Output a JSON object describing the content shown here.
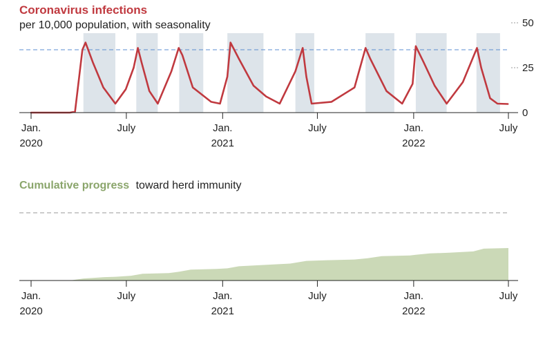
{
  "colors": {
    "infection_line": "#c0393f",
    "season_band": "#dde4ea",
    "threshold_line": "#5b8ed0",
    "progress_fill": "#cbd9b7",
    "progress_title": "#8aa56b",
    "axis": "#222222",
    "dashed_gray": "#999999"
  },
  "chart_data": [
    {
      "type": "line",
      "title": "Coronavirus infections",
      "subtitle": "per 10,000 population, with seasonality",
      "x_range": [
        "2020-01-01",
        "2022-07-01"
      ],
      "ylim": [
        0,
        50
      ],
      "y_ticks": [
        {
          "value": 50,
          "label": "50"
        },
        {
          "value": 25,
          "label": "25"
        },
        {
          "value": 0,
          "label": "0"
        }
      ],
      "threshold": 35,
      "x_ticks": [
        {
          "date": "2020-01-01",
          "label": "Jan.",
          "year": "2020"
        },
        {
          "date": "2020-07-01",
          "label": "July",
          "year": ""
        },
        {
          "date": "2021-01-01",
          "label": "Jan.",
          "year": "2021"
        },
        {
          "date": "2021-07-01",
          "label": "July",
          "year": ""
        },
        {
          "date": "2022-01-01",
          "label": "Jan.",
          "year": "2022"
        },
        {
          "date": "2022-07-01",
          "label": "July",
          "year": ""
        }
      ],
      "season_bands": [
        [
          "2020-04-10",
          "2020-06-10"
        ],
        [
          "2020-07-20",
          "2020-08-30"
        ],
        [
          "2020-10-10",
          "2020-11-25"
        ],
        [
          "2021-01-10",
          "2021-03-20"
        ],
        [
          "2021-05-20",
          "2021-06-25"
        ],
        [
          "2021-10-01",
          "2021-11-25"
        ],
        [
          "2022-01-05",
          "2022-03-05"
        ],
        [
          "2022-05-01",
          "2022-06-15"
        ]
      ],
      "series": [
        {
          "x": [
            "2020-01-01",
            "2020-03-15",
            "2020-03-25",
            "2020-04-08",
            "2020-04-14",
            "2020-04-28",
            "2020-05-18",
            "2020-06-10",
            "2020-06-30",
            "2020-07-15",
            "2020-07-23",
            "2020-07-30",
            "2020-08-14",
            "2020-08-30",
            "2020-09-25",
            "2020-10-09",
            "2020-10-16",
            "2020-11-05",
            "2020-12-10",
            "2020-12-27",
            "2021-01-10",
            "2021-01-16",
            "2021-02-01",
            "2021-03-01",
            "2021-03-25",
            "2021-04-20",
            "2021-05-20",
            "2021-06-03",
            "2021-06-10",
            "2021-06-20",
            "2021-07-28",
            "2021-09-10",
            "2021-10-01",
            "2021-10-10",
            "2021-11-10",
            "2021-12-10",
            "2021-12-30",
            "2022-01-05",
            "2022-01-20",
            "2022-02-10",
            "2022-03-05",
            "2022-04-05",
            "2022-05-02",
            "2022-05-10",
            "2022-05-27",
            "2022-06-10",
            "2022-06-30"
          ],
          "y": [
            0,
            0,
            0.5,
            35,
            39,
            28,
            14,
            5,
            13,
            25,
            36,
            28,
            12,
            5,
            23,
            36,
            32,
            14,
            6,
            5,
            20,
            39,
            30,
            15,
            9,
            5,
            23,
            36,
            20,
            5,
            6,
            14,
            36,
            30,
            12,
            5,
            16,
            37,
            28,
            15,
            5,
            17,
            36,
            25,
            8,
            5,
            4.8
          ]
        }
      ]
    },
    {
      "type": "area",
      "title": "Cumulative progress",
      "subtitle": "toward herd immunity",
      "x_range": [
        "2020-01-01",
        "2022-07-01"
      ],
      "ylim": [
        0,
        100
      ],
      "threshold": 100,
      "x_ticks": [
        {
          "date": "2020-01-01",
          "label": "Jan.",
          "year": "2020"
        },
        {
          "date": "2020-07-01",
          "label": "July",
          "year": ""
        },
        {
          "date": "2021-01-01",
          "label": "Jan.",
          "year": "2021"
        },
        {
          "date": "2021-07-01",
          "label": "July",
          "year": ""
        },
        {
          "date": "2022-01-01",
          "label": "Jan.",
          "year": "2022"
        },
        {
          "date": "2022-07-01",
          "label": "July",
          "year": ""
        }
      ],
      "series": [
        {
          "x": [
            "2020-01-01",
            "2020-03-15",
            "2020-04-10",
            "2020-05-20",
            "2020-06-10",
            "2020-07-10",
            "2020-08-01",
            "2020-09-20",
            "2020-10-10",
            "2020-11-01",
            "2020-12-20",
            "2021-01-10",
            "2021-02-01",
            "2021-03-20",
            "2021-05-10",
            "2021-06-10",
            "2021-07-20",
            "2021-09-10",
            "2021-10-05",
            "2021-11-01",
            "2021-12-25",
            "2022-01-05",
            "2022-02-01",
            "2022-03-10",
            "2022-04-25",
            "2022-05-15",
            "2022-07-01"
          ],
          "y": [
            0,
            0,
            3,
            5,
            5.5,
            7,
            10,
            11,
            13,
            16,
            17,
            18,
            21,
            23,
            25,
            29,
            30,
            31,
            33,
            36,
            37,
            38,
            40,
            41,
            43,
            47,
            48
          ]
        }
      ]
    }
  ]
}
